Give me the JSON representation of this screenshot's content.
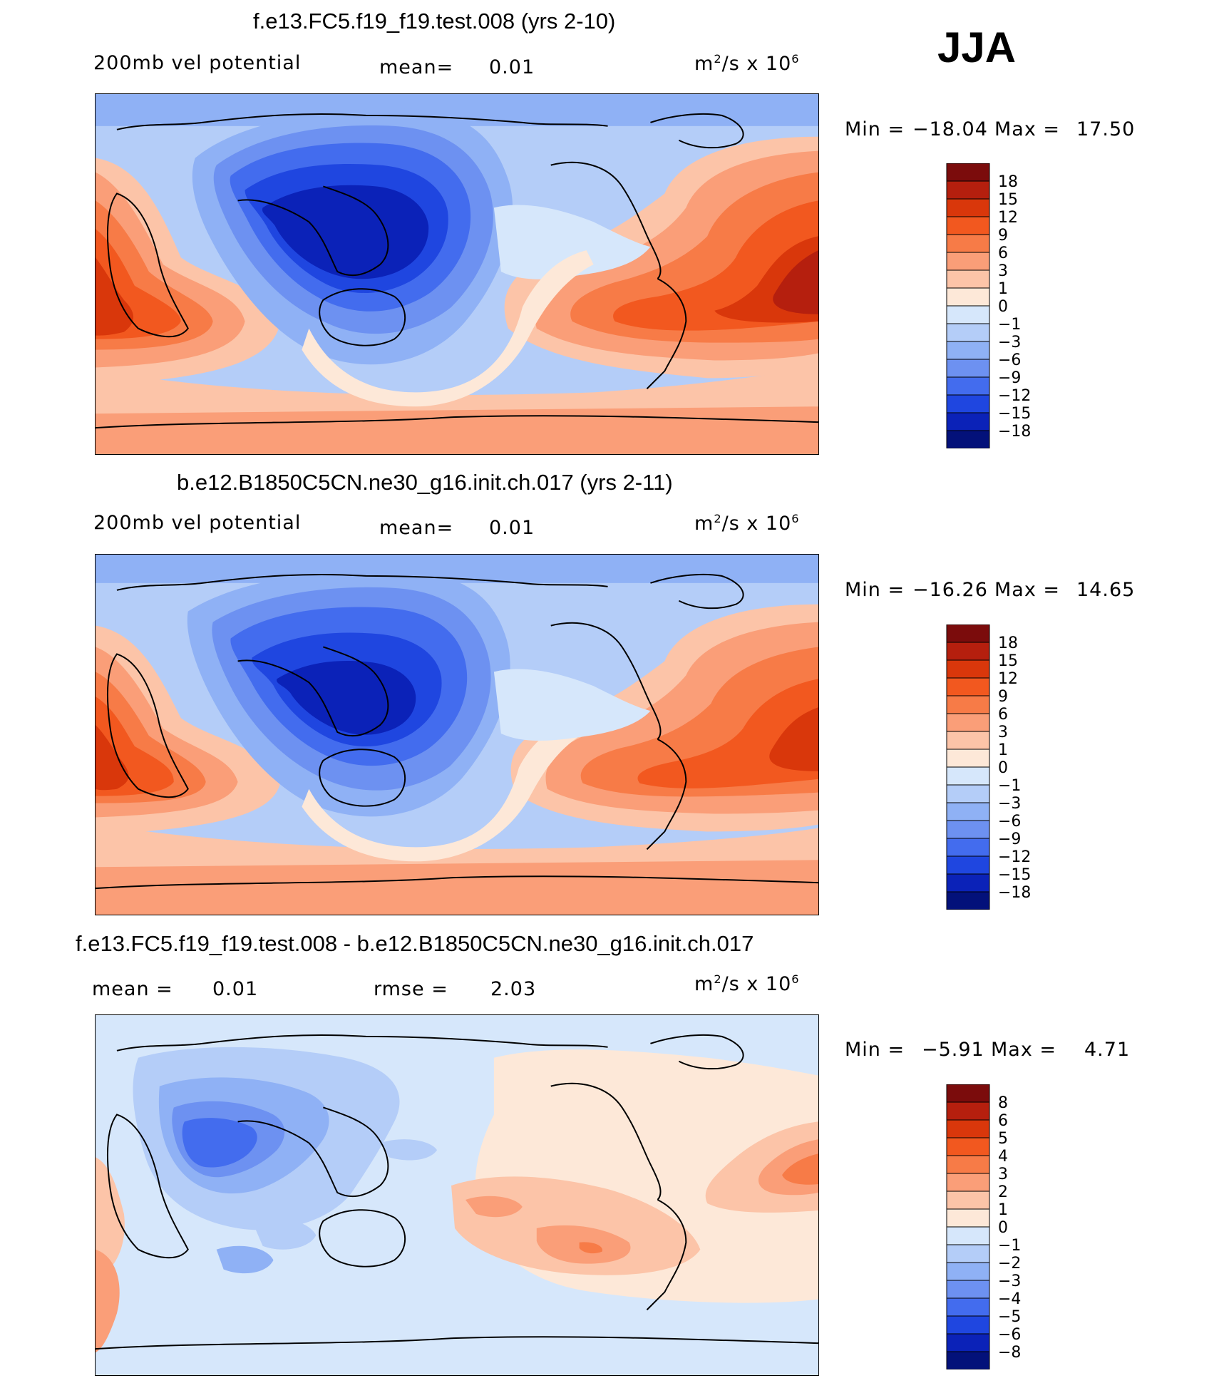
{
  "season": "JJA",
  "panels": [
    {
      "title": "f.e13.FC5.f19_f19.test.008 (yrs 2-10)",
      "left_label": "200mb vel potential",
      "mid_label": "mean=",
      "mid_value": "0.01",
      "units_base": "m",
      "units_sup": "2",
      "units_rest": "/s x 10",
      "units_exp": "6",
      "min_label": "Min =",
      "min_value": "−18.04",
      "max_label": "Max =",
      "max_value": "17.50",
      "levels": [
        "18",
        "15",
        "12",
        "9",
        "6",
        "3",
        "1",
        "0",
        "−1",
        "−3",
        "−6",
        "−9",
        "−12",
        "−15",
        "−18"
      ]
    },
    {
      "title": "b.e12.B1850C5CN.ne30_g16.init.ch.017 (yrs 2-11)",
      "left_label": "200mb vel potential",
      "mid_label": "mean=",
      "mid_value": "0.01",
      "units_base": "m",
      "units_sup": "2",
      "units_rest": "/s x 10",
      "units_exp": "6",
      "min_label": "Min =",
      "min_value": "−16.26",
      "max_label": "Max =",
      "max_value": "14.65",
      "levels": [
        "18",
        "15",
        "12",
        "9",
        "6",
        "3",
        "1",
        "0",
        "−1",
        "−3",
        "−6",
        "−9",
        "−12",
        "−15",
        "−18"
      ]
    },
    {
      "title": "f.e13.FC5.f19_f19.test.008 - b.e12.B1850C5CN.ne30_g16.init.ch.017",
      "left_label": "mean =",
      "left_value": "0.01",
      "mid_label": "rmse =",
      "mid_value": "2.03",
      "units_base": "m",
      "units_sup": "2",
      "units_rest": "/s x 10",
      "units_exp": "6",
      "min_label": "Min =",
      "min_value": "−5.91",
      "max_label": "Max =",
      "max_value": "4.71",
      "levels": [
        "8",
        "6",
        "5",
        "4",
        "3",
        "2",
        "1",
        "0",
        "−1",
        "−2",
        "−3",
        "−4",
        "−5",
        "−6",
        "−8"
      ]
    }
  ],
  "colors": {
    "palette": [
      "#7b0c0c",
      "#b51f0e",
      "#d9370b",
      "#f2581f",
      "#f77b47",
      "#fa9e78",
      "#fcc4a8",
      "#fde8d8",
      "#d6e7fb",
      "#b4cdf8",
      "#8fb1f5",
      "#6d91f1",
      "#436cee",
      "#1f46e0",
      "#0b22b8",
      "#03117a"
    ]
  }
}
